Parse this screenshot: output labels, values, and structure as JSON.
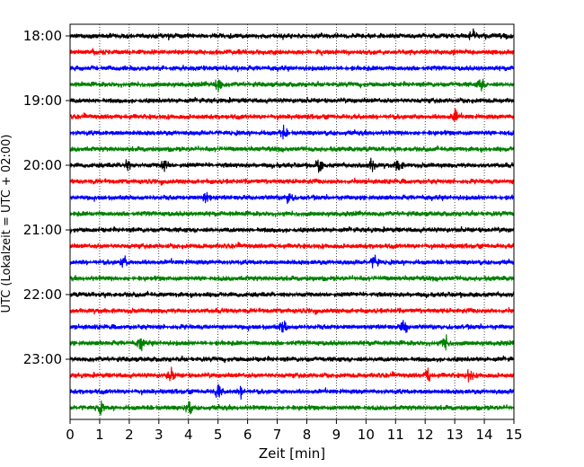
{
  "chart_data": {
    "type": "line",
    "title": "",
    "xlabel": "Zeit  [min]",
    "ylabel": "UTC (Lokalzeit = UTC + 02:00)",
    "xlim": [
      0,
      15
    ],
    "x_ticks": [
      0,
      1,
      2,
      3,
      4,
      5,
      6,
      7,
      8,
      9,
      10,
      11,
      12,
      13,
      14,
      15
    ],
    "y_tick_labels": [
      "18:00",
      "19:00",
      "20:00",
      "21:00",
      "22:00",
      "23:00"
    ],
    "grid": "vertical dotted lines at each minute",
    "trace_interval_minutes": 15,
    "start_time": "18:00",
    "trace_count": 24,
    "trace_colors": [
      "#000000",
      "#ff0000",
      "#0000ff",
      "#008000"
    ],
    "rows": [
      {
        "start": "18:00",
        "color": "black",
        "events_min": [
          13.6
        ]
      },
      {
        "start": "18:15",
        "color": "red",
        "events_min": []
      },
      {
        "start": "18:30",
        "color": "blue",
        "events_min": []
      },
      {
        "start": "18:45",
        "color": "green",
        "events_min": [
          5.0,
          13.9
        ]
      },
      {
        "start": "19:00",
        "color": "black",
        "events_min": []
      },
      {
        "start": "19:15",
        "color": "red",
        "events_min": [
          13.0
        ]
      },
      {
        "start": "19:30",
        "color": "blue",
        "events_min": [
          7.2
        ]
      },
      {
        "start": "19:45",
        "color": "green",
        "events_min": []
      },
      {
        "start": "20:00",
        "color": "black",
        "events_min": [
          1.9,
          3.2,
          8.4,
          10.2,
          11.1
        ]
      },
      {
        "start": "20:15",
        "color": "red",
        "events_min": []
      },
      {
        "start": "20:30",
        "color": "blue",
        "events_min": [
          4.6,
          7.4
        ]
      },
      {
        "start": "20:45",
        "color": "green",
        "events_min": []
      },
      {
        "start": "21:00",
        "color": "black",
        "events_min": []
      },
      {
        "start": "21:15",
        "color": "red",
        "events_min": []
      },
      {
        "start": "21:30",
        "color": "blue",
        "events_min": [
          1.8,
          10.3
        ]
      },
      {
        "start": "21:45",
        "color": "green",
        "events_min": []
      },
      {
        "start": "22:00",
        "color": "black",
        "events_min": []
      },
      {
        "start": "22:15",
        "color": "red",
        "events_min": []
      },
      {
        "start": "22:30",
        "color": "blue",
        "events_min": [
          7.2,
          11.3
        ]
      },
      {
        "start": "22:45",
        "color": "green",
        "events_min": [
          2.4,
          12.7
        ]
      },
      {
        "start": "23:00",
        "color": "black",
        "events_min": []
      },
      {
        "start": "23:15",
        "color": "red",
        "events_min": [
          3.4,
          12.1,
          13.5
        ]
      },
      {
        "start": "23:30",
        "color": "blue",
        "events_min": [
          5.0,
          5.8
        ]
      },
      {
        "start": "23:45",
        "color": "green",
        "events_min": [
          1.0,
          4.0
        ]
      }
    ]
  }
}
